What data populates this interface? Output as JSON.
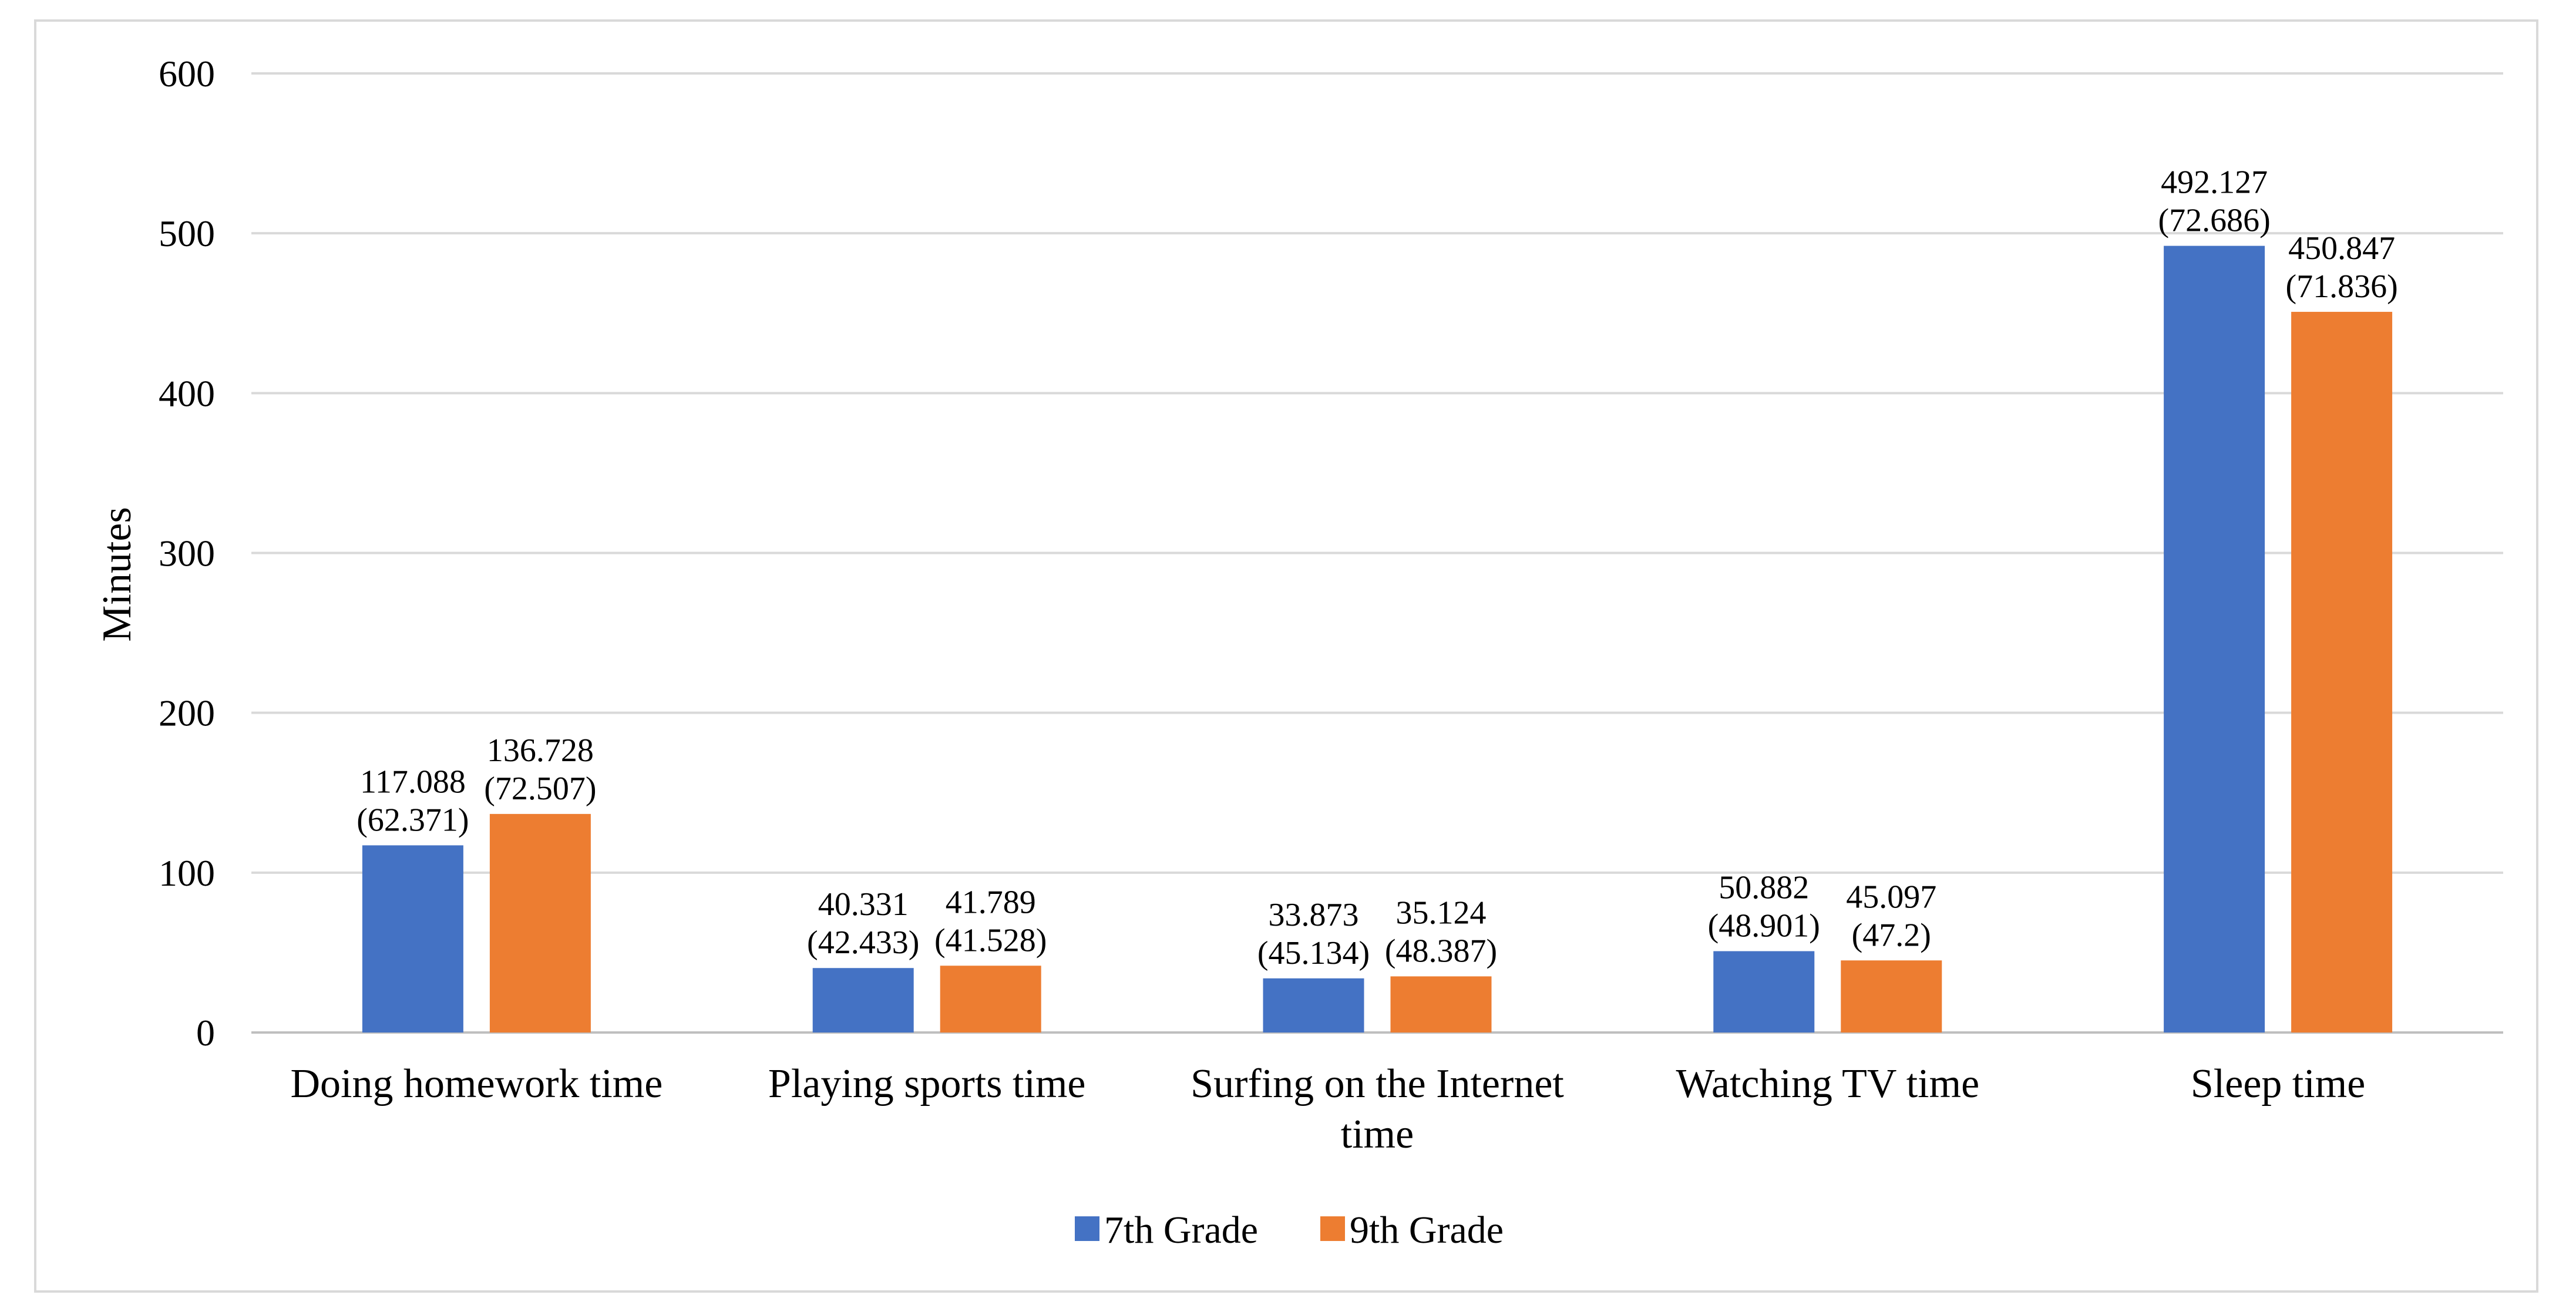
{
  "chart_data": {
    "type": "bar",
    "title": "",
    "xlabel": "",
    "ylabel": "Minutes",
    "ylim": [
      0,
      600
    ],
    "yticks": [
      "0",
      "100",
      "200",
      "300",
      "400",
      "500",
      "600"
    ],
    "categories": [
      [
        "Doing homework time"
      ],
      [
        "Playing sports time"
      ],
      [
        "Surfing on the Internet",
        "time"
      ],
      [
        "Watching TV time"
      ],
      [
        "Sleep time"
      ]
    ],
    "series": [
      {
        "name": "7th Grade",
        "color": "#4472c4",
        "values": [
          117.088,
          40.331,
          33.873,
          50.882,
          492.127
        ],
        "labels": [
          [
            "117.088",
            "(62.371)"
          ],
          [
            "40.331",
            "(42.433)"
          ],
          [
            "33.873",
            "(45.134)"
          ],
          [
            "50.882",
            "(48.901)"
          ],
          [
            "492.127",
            "(72.686)"
          ]
        ]
      },
      {
        "name": "9th Grade",
        "color": "#ed7d31",
        "values": [
          136.728,
          41.789,
          35.124,
          45.097,
          450.847
        ],
        "labels": [
          [
            "136.728",
            "(72.507)"
          ],
          [
            "41.789",
            "(41.528)"
          ],
          [
            "35.124",
            "(48.387)"
          ],
          [
            "45.097",
            "(47.2)"
          ],
          [
            "450.847",
            "(71.836)"
          ]
        ]
      }
    ],
    "gridlines": true,
    "legend_position": "bottom"
  }
}
